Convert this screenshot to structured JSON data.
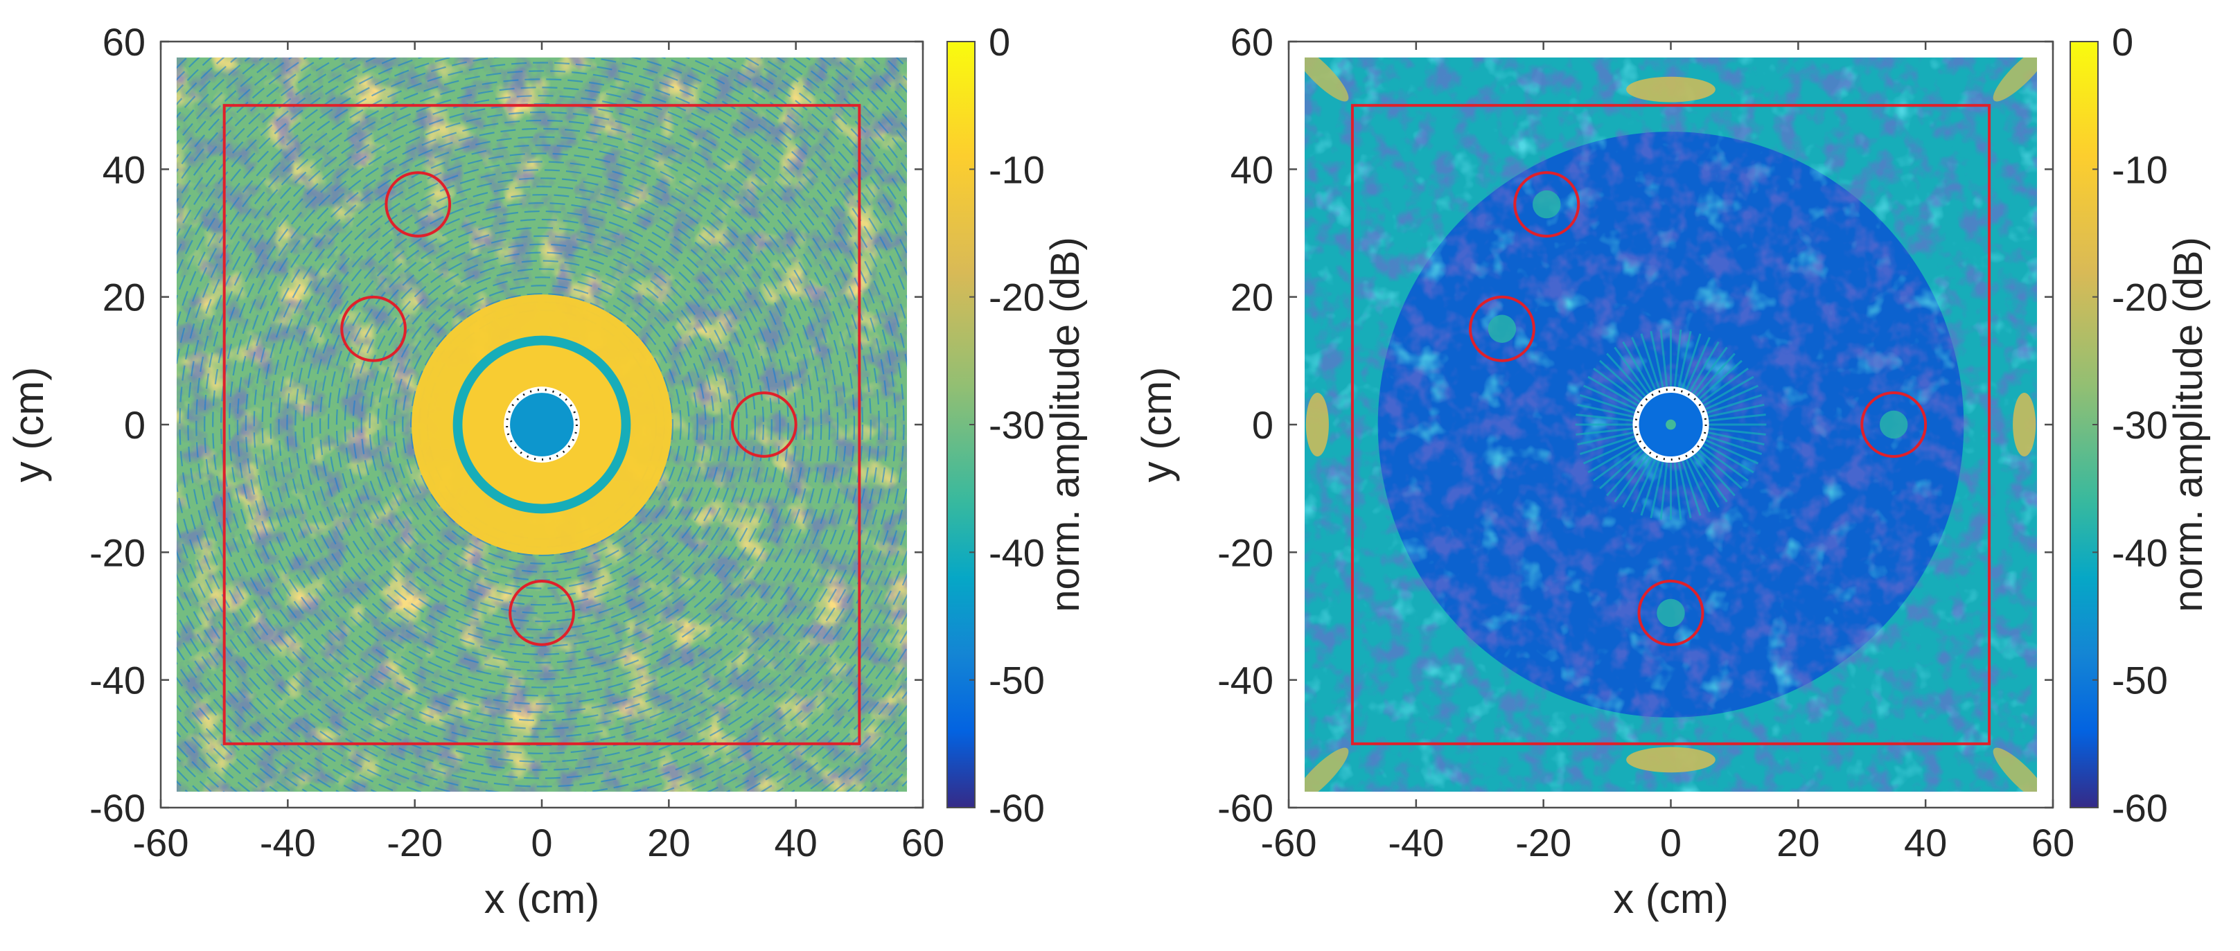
{
  "chart_data": [
    {
      "type": "heatmap",
      "xlabel": "x (cm)",
      "ylabel": "y (cm)",
      "xlim": [
        -60,
        60
      ],
      "ylim": [
        -60,
        60
      ],
      "xticks": [
        "-60",
        "-40",
        "-20",
        "0",
        "20",
        "40",
        "60"
      ],
      "yticks": [
        "60",
        "40",
        "20",
        "0",
        "-20",
        "-40",
        "-60"
      ],
      "colorbar": {
        "label": "norm. amplitude (dB)",
        "range": [
          -60,
          0
        ],
        "ticks": [
          "0",
          "-10",
          "-20",
          "-30",
          "-40",
          "-50",
          "-60"
        ]
      },
      "rectangle": {
        "x": [
          -50,
          50
        ],
        "y": [
          -50,
          50
        ],
        "color": "#e0202a"
      },
      "circle_markers": [
        {
          "x": -19.5,
          "y": 34.5,
          "r": 5
        },
        {
          "x": -26.5,
          "y": 15,
          "r": 5
        },
        {
          "x": 35,
          "y": 0,
          "r": 5
        },
        {
          "x": 0,
          "y": -29.5,
          "r": 5
        }
      ],
      "center_ring": {
        "x": 0,
        "y": 0,
        "r": 5.5
      },
      "dominant_levels_db": {
        "background": -30,
        "annular_band": -10,
        "core": -45
      },
      "field_extent_cm": 57.5
    },
    {
      "type": "heatmap",
      "xlabel": "x (cm)",
      "ylabel": "y (cm)",
      "xlim": [
        -60,
        60
      ],
      "ylim": [
        -60,
        60
      ],
      "xticks": [
        "-60",
        "-40",
        "-20",
        "0",
        "20",
        "40",
        "60"
      ],
      "yticks": [
        "60",
        "40",
        "20",
        "0",
        "-20",
        "-40",
        "-60"
      ],
      "colorbar": {
        "label": "norm. amplitude (dB)",
        "range": [
          -60,
          0
        ],
        "ticks": [
          "0",
          "-10",
          "-20",
          "-30",
          "-40",
          "-50",
          "-60"
        ]
      },
      "rectangle": {
        "x": [
          -50,
          50
        ],
        "y": [
          -50,
          50
        ],
        "color": "#e0202a"
      },
      "circle_markers": [
        {
          "x": -19.5,
          "y": 34.5,
          "r": 5
        },
        {
          "x": -26.5,
          "y": 15,
          "r": 5
        },
        {
          "x": 35,
          "y": 0,
          "r": 5
        },
        {
          "x": 0,
          "y": -29.5,
          "r": 5
        }
      ],
      "center_ring": {
        "x": 0,
        "y": 0,
        "r": 5.5
      },
      "dominant_levels_db": {
        "background": -55,
        "edge": -40,
        "hotspots": -20
      },
      "field_extent_cm": 57.5
    }
  ]
}
